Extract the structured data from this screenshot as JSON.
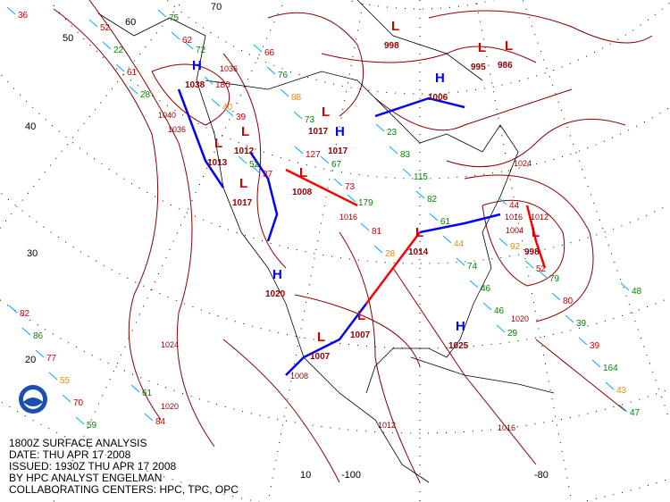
{
  "caption": {
    "line1": "1800Z SURFACE ANALYSIS",
    "line2": "DATE: THU APR 17 2008",
    "line3": "ISSUED: 1930Z THU APR 17 2008",
    "line4": "BY HPC ANALYST ENGELMAN",
    "line5": "COLLABORATING CENTERS: HPC, TPC, OPC"
  },
  "logo": {
    "text": "NOAA",
    "icon": "noaa-logo"
  },
  "grid_labels": [
    "70",
    "60",
    "50",
    "40",
    "30",
    "20",
    "10",
    "-100",
    "-80"
  ],
  "pressure_centers": [
    {
      "type": "H",
      "value": "1038"
    },
    {
      "type": "H",
      "value": "1017"
    },
    {
      "type": "H",
      "value": "1020"
    },
    {
      "type": "H",
      "value": "1025"
    },
    {
      "type": "H",
      "value": "1006"
    },
    {
      "type": "L",
      "value": "1012"
    },
    {
      "type": "L",
      "value": "1017"
    },
    {
      "type": "L",
      "value": "1008"
    },
    {
      "type": "L",
      "value": "1007"
    },
    {
      "type": "L",
      "value": "1007"
    },
    {
      "type": "L",
      "value": "998"
    },
    {
      "type": "L",
      "value": "995"
    },
    {
      "type": "L",
      "value": "986"
    },
    {
      "type": "L",
      "value": "998"
    },
    {
      "type": "L",
      "value": "1014"
    },
    {
      "type": "L",
      "value": "1017"
    },
    {
      "type": "L",
      "value": "1013"
    }
  ],
  "isobar_labels": [
    "1024",
    "1020",
    "1020",
    "1016",
    "1024",
    "1012",
    "1036",
    "1040",
    "1036",
    "1016",
    "1012",
    "1008",
    "1004",
    "1016"
  ],
  "station_values": [
    "36",
    "28",
    "37",
    "28",
    "29",
    "47",
    "61",
    "52",
    "81",
    "46",
    "43",
    "22",
    "39",
    "179",
    "46",
    "164",
    "52",
    "40",
    "73",
    "74",
    "39",
    "59",
    "180",
    "67",
    "44",
    "39",
    "70",
    "72",
    "127",
    "61",
    "80",
    "55",
    "62",
    "73",
    "82",
    "79",
    "77",
    "75",
    "88",
    "115",
    "52",
    "86",
    "84",
    "76",
    "83",
    "92",
    "82",
    "61",
    "66",
    "23",
    "44",
    "48"
  ],
  "colors": {
    "isobar": "#8b0000",
    "cold_front": "#0000ff",
    "warm_front": "#ff0000",
    "high": "#0000ff",
    "low": "#cc0000",
    "coast": "#000000",
    "temp": "#cc0000",
    "dewpoint": "#008800",
    "wind": "#00aaff",
    "orange": "#ff8800"
  }
}
